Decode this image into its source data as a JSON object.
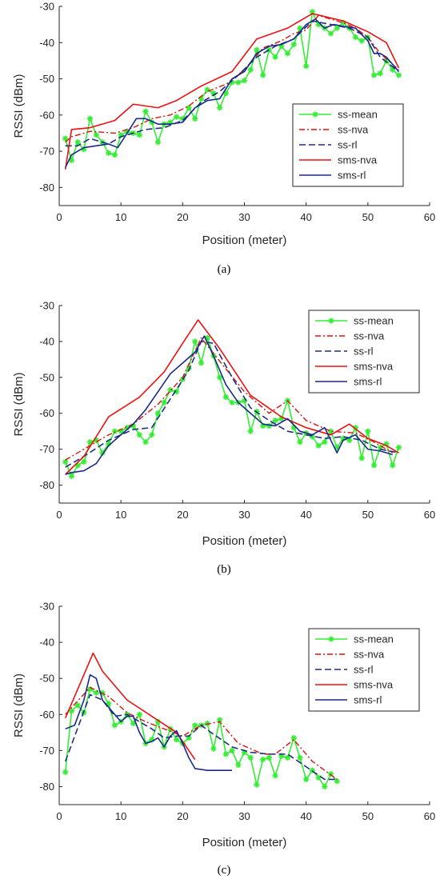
{
  "colors": {
    "ss_mean": "#33ee33",
    "ss_nva": "#dd1111",
    "ss_rl": "#1f2f7f",
    "sms_nva": "#ee1111",
    "sms_rl": "#1a2a8a",
    "axis": "#262626"
  },
  "chart_data": [
    {
      "type": "line",
      "caption": "(a)",
      "xlabel": "Position (meter)",
      "ylabel": "RSSI (dBm)",
      "xlim": [
        0,
        60
      ],
      "ylim": [
        -85,
        -30
      ],
      "xticks": [
        "0",
        "10",
        "20",
        "30",
        "40",
        "50",
        "60"
      ],
      "yticks": [
        "-30",
        "-40",
        "-50",
        "-60",
        "-70",
        "-80"
      ],
      "legend": {
        "position": "lower-right",
        "entries": [
          "ss-mean",
          "ss-nva",
          "ss-rl",
          "sms-nva",
          "sms-rl"
        ]
      },
      "series": [
        {
          "name": "ss-mean",
          "style": "ss_mean",
          "x": [
            1,
            2,
            3,
            4,
            5,
            6,
            7,
            8,
            9,
            10,
            11,
            12,
            13,
            14,
            15,
            16,
            17,
            18,
            19,
            20,
            21,
            22,
            23,
            24,
            25,
            26,
            27,
            28,
            29,
            30,
            31,
            32,
            33,
            34,
            35,
            36,
            37,
            38,
            39,
            40,
            41,
            42,
            43,
            44,
            45,
            46,
            47,
            48,
            49,
            50,
            51,
            52,
            53,
            54,
            55
          ],
          "y": [
            -66.5,
            -72.5,
            -67.5,
            -69.5,
            -61,
            -65.5,
            -67.5,
            -70.5,
            -71,
            -65.5,
            -64.5,
            -65,
            -65.5,
            -59,
            -62,
            -67.5,
            -62.5,
            -62,
            -60.5,
            -61,
            -58,
            -61,
            -55.5,
            -53,
            -54,
            -58,
            -54,
            -51,
            -51,
            -50.5,
            -47.5,
            -42,
            -49,
            -42,
            -44,
            -41,
            -43,
            -40.5,
            -36,
            -46.5,
            -31.5,
            -35,
            -36,
            -37.5,
            -36,
            -34.5,
            -36,
            -38.5,
            -39.5,
            -38.5,
            -49,
            -48.5,
            -45,
            -47.5,
            -49
          ]
        },
        {
          "name": "ss-nva",
          "style": "ss_nva",
          "x": [
            1,
            2,
            5,
            9,
            12,
            15,
            18,
            21,
            24,
            27,
            30,
            33,
            36,
            38,
            40,
            42,
            44,
            46,
            48,
            50,
            52,
            55
          ],
          "y": [
            -67.5,
            -66,
            -64.5,
            -65,
            -63.5,
            -61,
            -60,
            -57.5,
            -53.5,
            -51.5,
            -47.5,
            -41.5,
            -39.5,
            -37.5,
            -36.5,
            -32.5,
            -33.5,
            -34.5,
            -36,
            -38.5,
            -43,
            -47.5
          ]
        },
        {
          "name": "ss-rl",
          "style": "ss_rl",
          "x": [
            1,
            3,
            5,
            8,
            10,
            12,
            14,
            17,
            20,
            23,
            26,
            29,
            32,
            35,
            38,
            41,
            44,
            47,
            50,
            52,
            55
          ],
          "y": [
            -68.5,
            -68.5,
            -66.5,
            -68,
            -66,
            -65,
            -64,
            -63.5,
            -61.5,
            -56.5,
            -53.5,
            -49,
            -44,
            -41,
            -39,
            -34,
            -35,
            -36,
            -38.5,
            -44,
            -48
          ]
        },
        {
          "name": "sms-nva",
          "style": "sms_nva",
          "x": [
            1,
            2,
            5,
            9,
            12,
            16,
            19,
            23,
            28,
            32,
            37,
            41,
            46,
            50,
            53,
            55
          ],
          "y": [
            -75,
            -64,
            -63.5,
            -61.5,
            -57,
            -58,
            -56,
            -52,
            -48,
            -39,
            -36,
            -32,
            -34,
            -37,
            -40,
            -47
          ]
        },
        {
          "name": "sms-rl",
          "style": "sms_rl",
          "x": [
            1,
            2,
            4,
            6,
            8,
            9.5,
            11,
            12.5,
            14,
            16,
            18,
            20,
            22,
            24,
            26,
            28,
            30,
            32,
            34,
            36,
            38,
            40,
            41.5,
            43,
            44.5,
            46,
            48,
            50,
            51,
            52,
            53,
            55
          ],
          "y": [
            -74.5,
            -71,
            -69,
            -68.5,
            -68,
            -69,
            -65,
            -61,
            -61,
            -62.5,
            -62.5,
            -62,
            -58,
            -56,
            -55.5,
            -50,
            -48,
            -43,
            -41,
            -40.5,
            -39,
            -35,
            -33.5,
            -36,
            -35,
            -35.5,
            -36,
            -39.5,
            -43,
            -43,
            -44,
            -48
          ]
        }
      ]
    },
    {
      "type": "line",
      "caption": "(b)",
      "xlabel": "Position (meter)",
      "ylabel": "RSSI (dBm)",
      "xlim": [
        0,
        60
      ],
      "ylim": [
        -85,
        -30
      ],
      "xticks": [
        "0",
        "10",
        "20",
        "30",
        "40",
        "50",
        "60"
      ],
      "yticks": [
        "-30",
        "-40",
        "-50",
        "-60",
        "-70",
        "-80"
      ],
      "legend": {
        "position": "top-right",
        "entries": [
          "ss-mean",
          "ss-nva",
          "ss-rl",
          "sms-nva",
          "sms-rl"
        ]
      },
      "series": [
        {
          "name": "ss-mean",
          "style": "ss_mean",
          "x": [
            1,
            2,
            3,
            4,
            5,
            6,
            7,
            8,
            9,
            10,
            11,
            12,
            13,
            14,
            15,
            16,
            17,
            18,
            19,
            20,
            21,
            22,
            23,
            24,
            25,
            26,
            27,
            28,
            29,
            30,
            31,
            32,
            33,
            34,
            35,
            36,
            37,
            38,
            39,
            40,
            41,
            42,
            43,
            44,
            45,
            46,
            47,
            48,
            49,
            50,
            51,
            52,
            53,
            54,
            55
          ],
          "y": [
            -73.5,
            -77.5,
            -74.5,
            -73.5,
            -68,
            -67.5,
            -71,
            -68.5,
            -65,
            -65,
            -64,
            -63.5,
            -66,
            -68,
            -66,
            -60,
            -57,
            -53.5,
            -54,
            -50.5,
            -47.5,
            -40,
            -46,
            -39,
            -44,
            -50,
            -55.5,
            -57,
            -57,
            -56.5,
            -65,
            -59.5,
            -63.5,
            -63.5,
            -62,
            -61.5,
            -56.5,
            -64,
            -68,
            -65.5,
            -66.5,
            -69,
            -68,
            -65,
            -69.5,
            -67,
            -67.5,
            -64,
            -72.5,
            -65,
            -74.5,
            -69.5,
            -68.5,
            -74.5,
            -69.5
          ]
        },
        {
          "name": "ss-nva",
          "style": "ss_nva",
          "x": [
            1,
            4,
            8,
            12,
            16,
            20,
            23,
            26,
            30,
            34,
            37,
            40,
            44,
            48,
            51,
            54
          ],
          "y": [
            -73,
            -70,
            -66,
            -63,
            -57.5,
            -50,
            -39,
            -45.5,
            -54,
            -60,
            -56.5,
            -62,
            -65,
            -65.5,
            -68,
            -71
          ]
        },
        {
          "name": "ss-rl",
          "style": "ss_rl",
          "x": [
            1,
            4,
            8,
            12,
            15,
            18,
            21,
            23,
            25,
            28,
            31,
            34,
            37,
            40,
            43,
            46,
            49,
            52,
            55
          ],
          "y": [
            -75,
            -72,
            -67.5,
            -64.5,
            -64,
            -56,
            -48,
            -40,
            -40.5,
            -50,
            -58.5,
            -62,
            -65,
            -66,
            -67,
            -66.5,
            -67.5,
            -70,
            -71
          ]
        },
        {
          "name": "sms-nva",
          "style": "sms_nva",
          "x": [
            1,
            4,
            8,
            13,
            17,
            20,
            22.5,
            26,
            31,
            36,
            40,
            44,
            47,
            50,
            53,
            55
          ],
          "y": [
            -77,
            -72,
            -61,
            -55.5,
            -48.5,
            -40.5,
            -34,
            -42,
            -55,
            -61,
            -64,
            -66,
            -63,
            -67,
            -69,
            -71
          ]
        },
        {
          "name": "sms-rl",
          "style": "sms_rl",
          "x": [
            1,
            2,
            4,
            6,
            8,
            10,
            12,
            14,
            16,
            18,
            20,
            22,
            23.5,
            25,
            27,
            29,
            31,
            33,
            35,
            37,
            39,
            41,
            43,
            45,
            46,
            48,
            50,
            52,
            54
          ],
          "y": [
            -77,
            -76.5,
            -76,
            -74,
            -69,
            -66,
            -63,
            -59,
            -54,
            -49,
            -46,
            -43,
            -38.5,
            -44,
            -52,
            -57,
            -60,
            -63,
            -63.5,
            -61.5,
            -65,
            -66,
            -64,
            -71,
            -67.5,
            -66,
            -70,
            -70.5,
            -71.5
          ]
        }
      ]
    },
    {
      "type": "line",
      "caption": "(c)",
      "xlabel": "Position (meter)",
      "ylabel": "RSSI (dBm)",
      "xlim": [
        0,
        60
      ],
      "ylim": [
        -85,
        -30
      ],
      "xticks": [
        "0",
        "10",
        "20",
        "30",
        "40",
        "50",
        "60"
      ],
      "yticks": [
        "-30",
        "-40",
        "-50",
        "-60",
        "-70",
        "-80"
      ],
      "legend": {
        "position": "top-right",
        "entries": [
          "ss-mean",
          "ss-nva",
          "ss-rl",
          "sms-nva",
          "sms-rl"
        ]
      },
      "series": [
        {
          "name": "ss-mean",
          "style": "ss_mean",
          "x": [
            1,
            2,
            3,
            4,
            5,
            6,
            7,
            8,
            9,
            10,
            11,
            12,
            13,
            14,
            15,
            16,
            17,
            18,
            19,
            20,
            21,
            22,
            23,
            24,
            25,
            26,
            27,
            28,
            29,
            30,
            31,
            32,
            33,
            34,
            35,
            36,
            37,
            38,
            39,
            40,
            41,
            42,
            43,
            44,
            45
          ],
          "y": [
            -76,
            -59,
            -57.5,
            -59.5,
            -53,
            -54,
            -54,
            -57,
            -63,
            -62,
            -60,
            -62.5,
            -60,
            -68,
            -67,
            -62,
            -69,
            -64,
            -67,
            -68,
            -66.5,
            -63,
            -63,
            -62.5,
            -69.5,
            -61.5,
            -71,
            -70,
            -74,
            -70.5,
            -72,
            -79.5,
            -72.5,
            -72,
            -77,
            -71.5,
            -72,
            -66.5,
            -72,
            -78,
            -75.5,
            -77.5,
            -80,
            -76.5,
            -78.5
          ]
        },
        {
          "name": "ss-nva",
          "style": "ss_nva",
          "x": [
            1,
            5,
            8,
            11,
            14,
            17,
            20,
            23,
            26,
            29,
            33,
            35,
            38,
            41,
            45
          ],
          "y": [
            -60,
            -52.5,
            -55,
            -59.5,
            -62,
            -64,
            -66,
            -63,
            -62,
            -68,
            -71,
            -71,
            -67,
            -73,
            -78
          ]
        },
        {
          "name": "ss-rl",
          "style": "ss_rl",
          "x": [
            1,
            5,
            7,
            9,
            11,
            13,
            15,
            17,
            19,
            21,
            23,
            25,
            28,
            31,
            34,
            37,
            40,
            43,
            45
          ],
          "y": [
            -73,
            -54.5,
            -56,
            -60.5,
            -60,
            -62,
            -64,
            -66.5,
            -66,
            -66,
            -63,
            -65.5,
            -69,
            -70.5,
            -71,
            -71,
            -74.5,
            -78,
            -78
          ]
        },
        {
          "name": "sms-nva",
          "style": "sms_nva",
          "x": [
            1,
            5.5,
            7,
            11,
            15,
            19,
            22
          ],
          "y": [
            -61,
            -43,
            -48,
            -56,
            -60.5,
            -65,
            -72.5
          ]
        },
        {
          "name": "sms-rl",
          "style": "sms_rl",
          "x": [
            1,
            2.5,
            4,
            5,
            6,
            7,
            8,
            10,
            11,
            12,
            13,
            14,
            15,
            16,
            17,
            18,
            19,
            20,
            21,
            22,
            24,
            28
          ],
          "y": [
            -64,
            -63,
            -56,
            -49,
            -50,
            -56,
            -58,
            -62,
            -60.5,
            -60.5,
            -65,
            -68,
            -67.5,
            -66.5,
            -69,
            -66,
            -64.5,
            -68,
            -72,
            -75,
            -75.5,
            -75.5
          ]
        }
      ]
    }
  ]
}
